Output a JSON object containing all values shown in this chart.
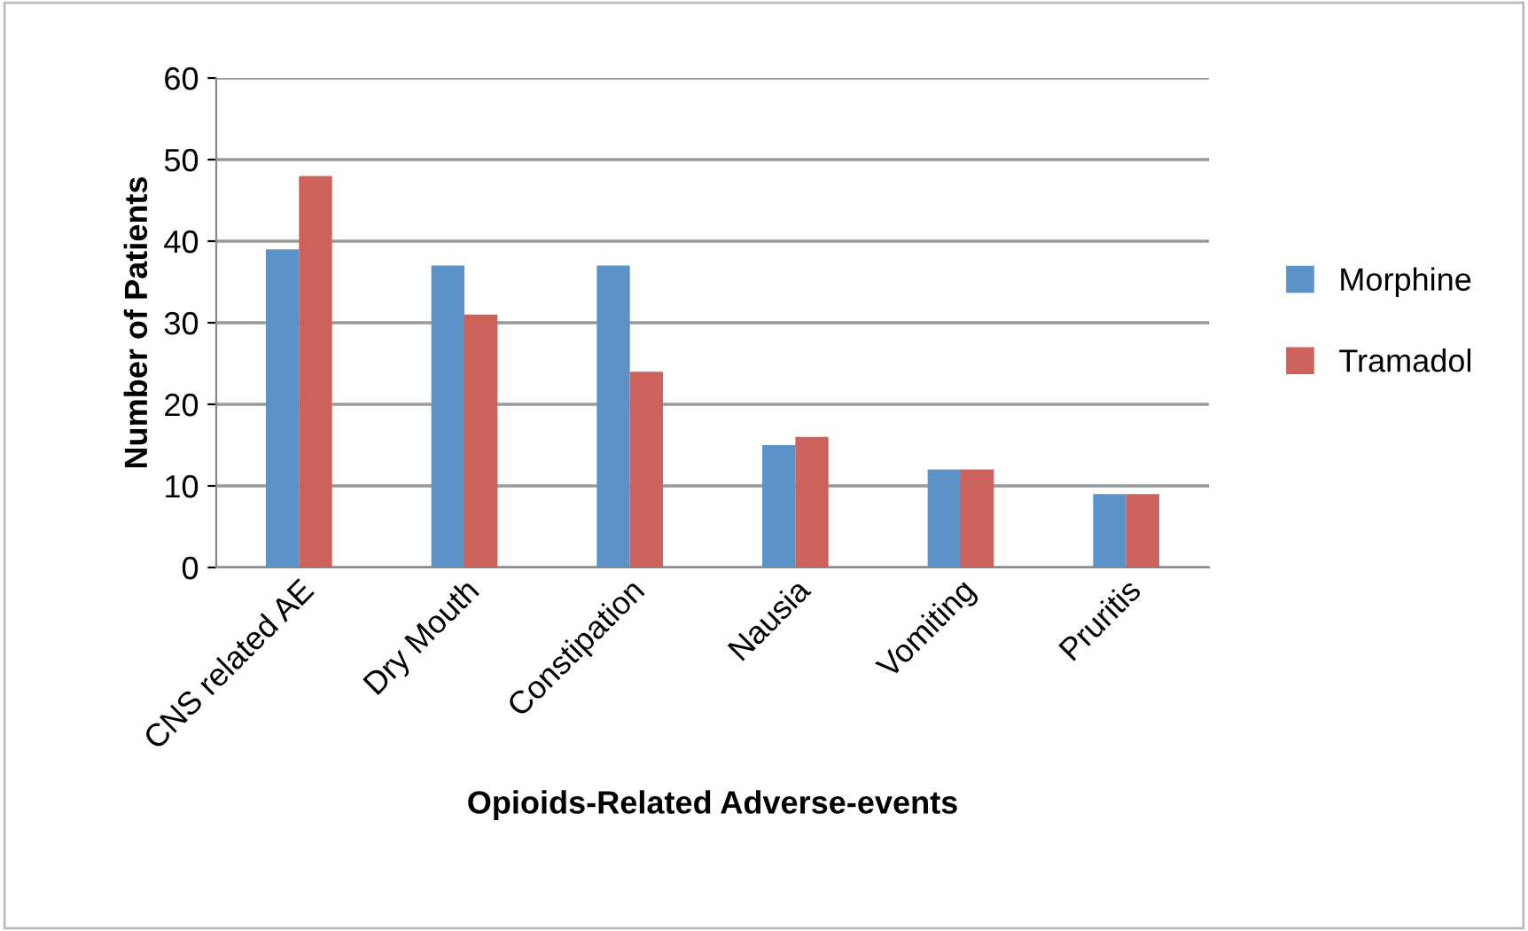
{
  "chart_data": {
    "type": "bar",
    "xlabel": "Opioids-Related Adverse-events",
    "ylabel": "Number of Patients",
    "categories": [
      "CNS related AE",
      "Dry Mouth",
      "Constipation",
      "Nausia",
      "Vomiting",
      "Pruritis"
    ],
    "series": [
      {
        "name": "Morphine",
        "color": "#5b93c8",
        "values": [
          39,
          37,
          37,
          15,
          12,
          9
        ]
      },
      {
        "name": "Tramadol",
        "color": "#cd625c",
        "values": [
          48,
          31,
          24,
          16,
          12,
          9
        ]
      }
    ],
    "ylim": [
      0,
      60
    ],
    "yticks": [
      0,
      10,
      20,
      30,
      40,
      50,
      60
    ],
    "grid": "y",
    "legend": "right"
  }
}
